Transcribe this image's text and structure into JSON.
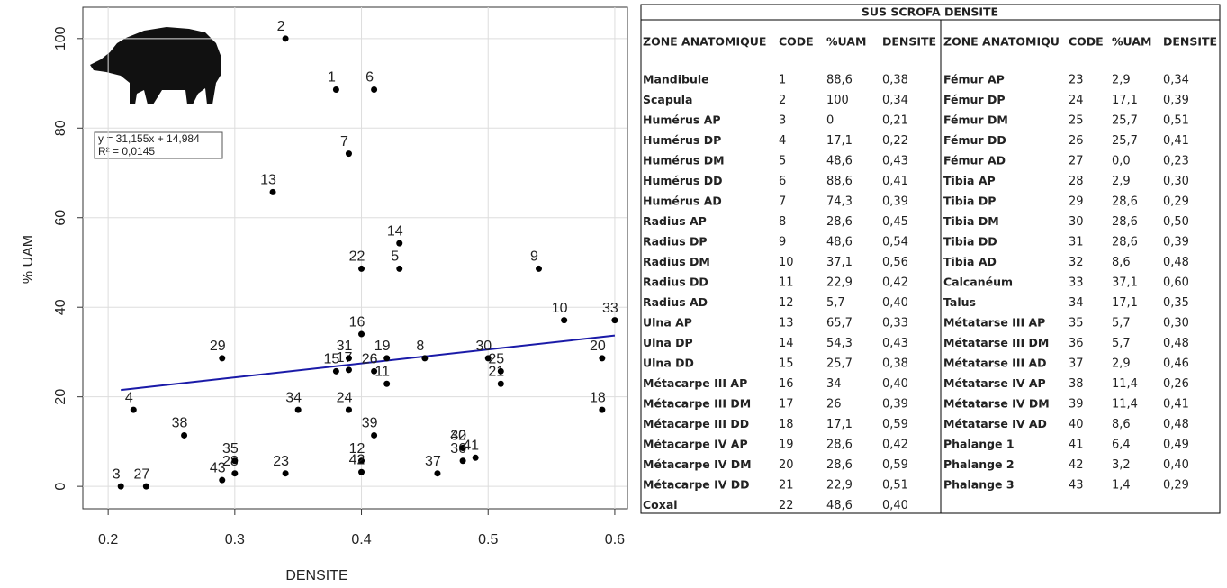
{
  "chart_data": {
    "type": "scatter",
    "x_label": "DENSITE",
    "y_label": "% UAM",
    "annotations": [
      "y = 31,155x + 14,984",
      "R² = 0,0145"
    ],
    "labels": [
      "1",
      "2",
      "3",
      "4",
      "5",
      "6",
      "7",
      "8",
      "9",
      "10",
      "11",
      "12",
      "13",
      "14",
      "15",
      "16",
      "17",
      "18",
      "19",
      "20",
      "21",
      "22",
      "23",
      "24",
      "25",
      "26",
      "27",
      "28",
      "29",
      "30",
      "31",
      "32",
      "33",
      "34",
      "35",
      "36",
      "37",
      "38",
      "39",
      "40",
      "41",
      "42",
      "43"
    ],
    "x": [
      0.38,
      0.34,
      0.21,
      0.22,
      0.43,
      0.41,
      0.39,
      0.45,
      0.54,
      0.56,
      0.42,
      0.4,
      0.33,
      0.43,
      0.38,
      0.4,
      0.39,
      0.59,
      0.42,
      0.59,
      0.51,
      0.4,
      0.34,
      0.39,
      0.51,
      0.41,
      0.23,
      0.3,
      0.29,
      0.5,
      0.39,
      0.48,
      0.6,
      0.35,
      0.3,
      0.48,
      0.46,
      0.26,
      0.41,
      0.48,
      0.49,
      0.4,
      0.29
    ],
    "values": [
      88.6,
      100,
      0,
      17.1,
      48.6,
      88.6,
      74.3,
      28.6,
      48.6,
      37.1,
      22.9,
      5.7,
      65.7,
      54.3,
      25.7,
      34,
      26,
      17.1,
      28.6,
      28.6,
      22.9,
      48.6,
      2.9,
      17.1,
      25.7,
      25.7,
      0,
      2.9,
      28.6,
      28.6,
      28.6,
      8.6,
      37.1,
      17.1,
      5.7,
      5.7,
      2.9,
      11.4,
      11.4,
      8.6,
      6.4,
      3.2,
      1.4
    ],
    "color": "#000000",
    "trendline": {
      "slope": 31.155,
      "intercept": 14.984,
      "color": "#1a1aa8"
    },
    "xlim": [
      0.18,
      0.61
    ],
    "ylim": [
      -5,
      107
    ],
    "xticks": [
      0.2,
      0.3,
      0.4,
      0.5,
      0.6
    ],
    "yticks": [
      0,
      20,
      40,
      60,
      80,
      100
    ],
    "grid": true
  },
  "table": {
    "title": "SUS SCROFA DENSITE",
    "columns": [
      "ZONE ANATOMIQUE",
      "CODE",
      "%UAM",
      "DENSITE",
      "ZONE ANATOMIQU",
      "CODE",
      "%UAM",
      "DENSITE"
    ],
    "left_rows": [
      [
        "Mandibule",
        "1",
        "88,6",
        "0,38"
      ],
      [
        "Scapula",
        "2",
        "100",
        "0,34"
      ],
      [
        "Humérus AP",
        "3",
        "0",
        "0,21"
      ],
      [
        "Humérus DP",
        "4",
        "17,1",
        "0,22"
      ],
      [
        "Humérus DM",
        "5",
        "48,6",
        "0,43"
      ],
      [
        "Humérus DD",
        "6",
        "88,6",
        "0,41"
      ],
      [
        "Humérus AD",
        "7",
        "74,3",
        "0,39"
      ],
      [
        "Radius AP",
        "8",
        "28,6",
        "0,45"
      ],
      [
        "Radius DP",
        "9",
        "48,6",
        "0,54"
      ],
      [
        "Radius DM",
        "10",
        "37,1",
        "0,56"
      ],
      [
        "Radius DD",
        "11",
        "22,9",
        "0,42"
      ],
      [
        "Radius AD",
        "12",
        "5,7",
        "0,40"
      ],
      [
        "Ulna AP",
        "13",
        "65,7",
        "0,33"
      ],
      [
        "Ulna DP",
        "14",
        "54,3",
        "0,43"
      ],
      [
        "Ulna DD",
        "15",
        "25,7",
        "0,38"
      ],
      [
        "Métacarpe III AP",
        "16",
        "34",
        "0,40"
      ],
      [
        "Métacarpe III DM",
        "17",
        "26",
        "0,39"
      ],
      [
        "Métacarpe III DD",
        "18",
        "17,1",
        "0,59"
      ],
      [
        "Métacarpe IV AP",
        "19",
        "28,6",
        "0,42"
      ],
      [
        "Métacarpe IV DM",
        "20",
        "28,6",
        "0,59"
      ],
      [
        "Métacarpe IV DD",
        "21",
        "22,9",
        "0,51"
      ],
      [
        "Coxal",
        "22",
        "48,6",
        "0,40"
      ]
    ],
    "right_rows": [
      [
        "Fémur AP",
        "23",
        "2,9",
        "0,34"
      ],
      [
        "Fémur DP",
        "24",
        "17,1",
        "0,39"
      ],
      [
        "Fémur DM",
        "25",
        "25,7",
        "0,51"
      ],
      [
        "Fémur DD",
        "26",
        "25,7",
        "0,41"
      ],
      [
        "Fémur AD",
        "27",
        "0,0",
        "0,23"
      ],
      [
        "Tibia AP",
        "28",
        "2,9",
        "0,30"
      ],
      [
        "Tibia DP",
        "29",
        "28,6",
        "0,29"
      ],
      [
        "Tibia DM",
        "30",
        "28,6",
        "0,50"
      ],
      [
        "Tibia DD",
        "31",
        "28,6",
        "0,39"
      ],
      [
        "Tibia AD",
        "32",
        "8,6",
        "0,48"
      ],
      [
        "Calcanéum",
        "33",
        "37,1",
        "0,60"
      ],
      [
        "Talus",
        "34",
        "17,1",
        "0,35"
      ],
      [
        "Métatarse III AP",
        "35",
        "5,7",
        "0,30"
      ],
      [
        "Métatarse III DM",
        "36",
        "5,7",
        "0,48"
      ],
      [
        "Métatarse III AD",
        "37",
        "2,9",
        "0,46"
      ],
      [
        "Métatarse IV AP",
        "38",
        "11,4",
        "0,26"
      ],
      [
        "Métatarse IV DM",
        "39",
        "11,4",
        "0,41"
      ],
      [
        "Métatarse IV AD",
        "40",
        "8,6",
        "0,48"
      ],
      [
        "Phalange 1",
        "41",
        "6,4",
        "0,49"
      ],
      [
        "Phalange 2",
        "42",
        "3,2",
        "0,40"
      ],
      [
        "Phalange 3",
        "43",
        "1,4",
        "0,29"
      ]
    ]
  }
}
